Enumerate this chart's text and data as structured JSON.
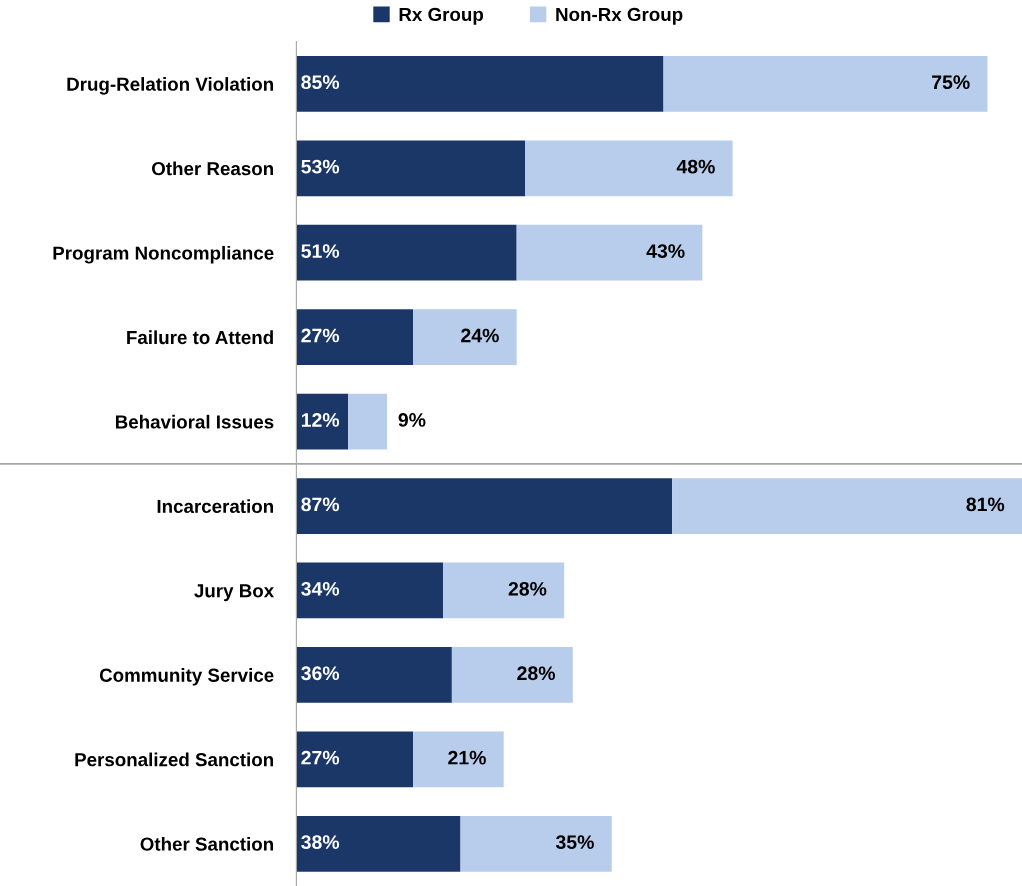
{
  "chart_data": {
    "type": "bar",
    "orientation": "horizontal",
    "stacked": true,
    "categories": [
      "Drug-Relation Violation",
      "Other Reason",
      "Program Noncompliance",
      "Failure to Attend",
      "Behavioral Issues",
      "Incarceration",
      "Jury Box",
      "Community Service",
      "Personalized Sanction",
      "Other Sanction"
    ],
    "series": [
      {
        "name": "Rx Group",
        "color": "#1b3768",
        "values": [
          85,
          53,
          51,
          27,
          12,
          87,
          34,
          36,
          27,
          38
        ],
        "value_labels": [
          "85%",
          "53%",
          "51%",
          "27%",
          "12%",
          "87%",
          "34%",
          "36%",
          "27%",
          "38%"
        ]
      },
      {
        "name": "Non-Rx Group",
        "color": "#b8cdec",
        "values": [
          75,
          48,
          43,
          24,
          9,
          81,
          28,
          28,
          21,
          35
        ],
        "value_labels": [
          "75%",
          "48%",
          "43%",
          "24%",
          "9%",
          "81%",
          "28%",
          "28%",
          "21%",
          "35%"
        ]
      }
    ],
    "tick_labels": "y",
    "legend": "top",
    "grid": false
  }
}
